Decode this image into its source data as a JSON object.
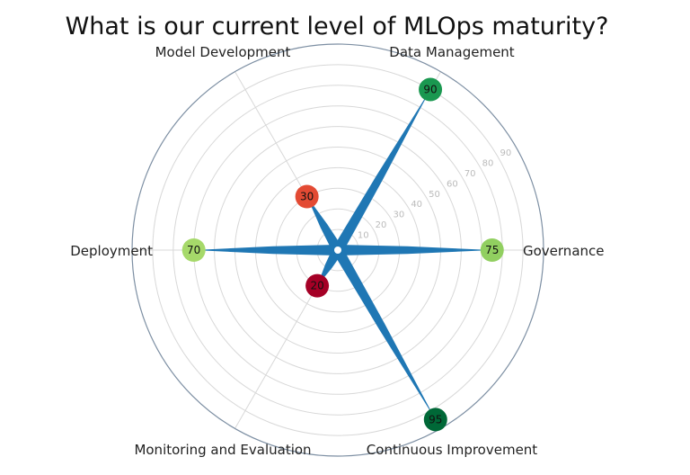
{
  "chart_data": {
    "type": "polar-bar",
    "title": "What is our current level of MLOps maturity?",
    "categories": [
      "Governance",
      "Data Management",
      "Model Development",
      "Deployment",
      "Monitoring and Evaluation",
      "Continuous Improvement"
    ],
    "values": [
      75,
      90,
      30,
      70,
      20,
      95
    ],
    "rlim": [
      0,
      100
    ],
    "rticks": [
      "10",
      "20",
      "30",
      "40",
      "50",
      "60",
      "70",
      "80",
      "90"
    ],
    "grid": true,
    "bar_color": "#1f77b4",
    "marker_colormap": "red-yellow-green",
    "marker_colors": [
      "#91cf60",
      "#1a9850",
      "#e34a33",
      "#a6d96a",
      "#a50026",
      "#006837"
    ]
  }
}
